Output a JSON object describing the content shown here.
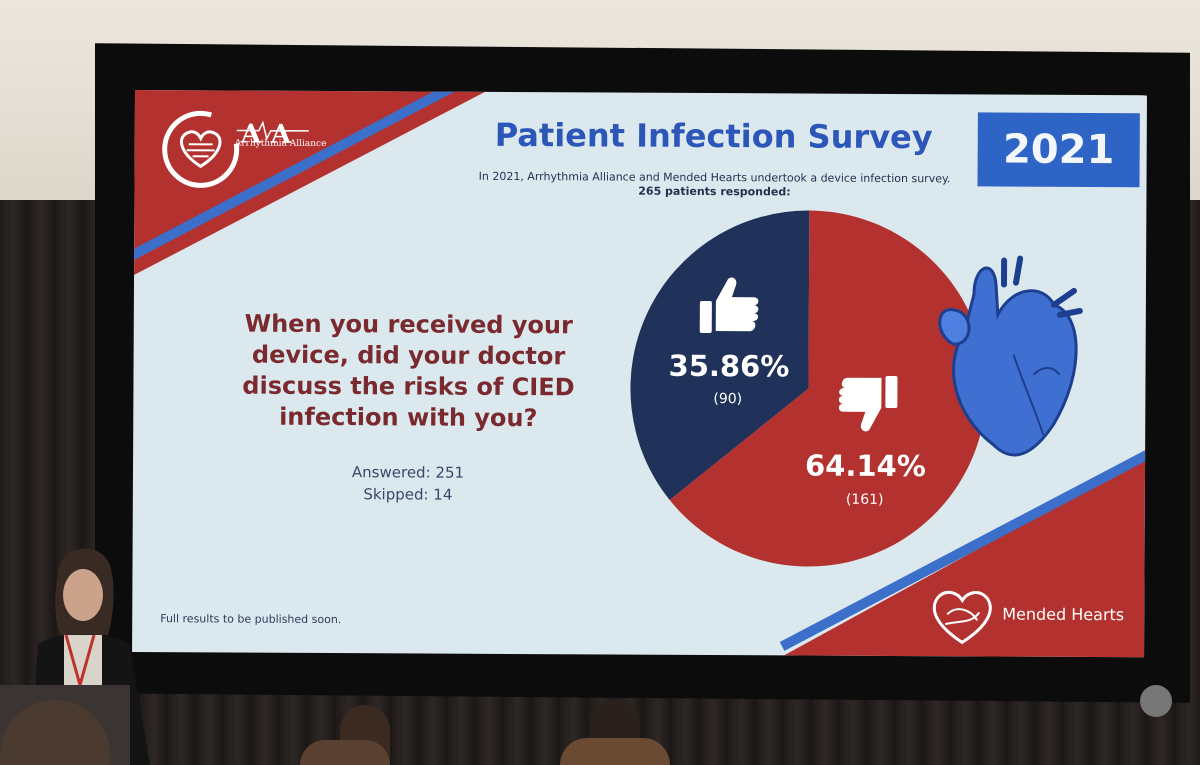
{
  "slide": {
    "title": "Patient Infection Survey",
    "year": "2021",
    "intro_line": "In 2021, Arrhythmia Alliance and Mended Hearts undertook a device infection survey.",
    "intro_bold": "265 patients responded:",
    "question": "When you received your device, did your doctor discuss the risks of CIED infection with you?",
    "answered": "Answered: 251",
    "skipped": "Skipped: 14",
    "footer": "Full results to be published soon.",
    "logo_left_text": "Arrhythmia Alliance",
    "logo_right_text": "Mended Hearts",
    "colors": {
      "red": "#b3312f",
      "navy": "#20315a",
      "blue": "#2e64c6",
      "slide_bg": "#dbe9ee"
    }
  },
  "chart_data": {
    "type": "pie",
    "slices": [
      {
        "label": "thumbs-up",
        "percent": 35.86,
        "count": 90,
        "percent_text": "35.86%",
        "count_text": "(90)",
        "color": "#20315a"
      },
      {
        "label": "thumbs-down",
        "percent": 64.14,
        "count": 161,
        "percent_text": "64.14%",
        "count_text": "(161)",
        "color": "#b3312f"
      }
    ]
  }
}
